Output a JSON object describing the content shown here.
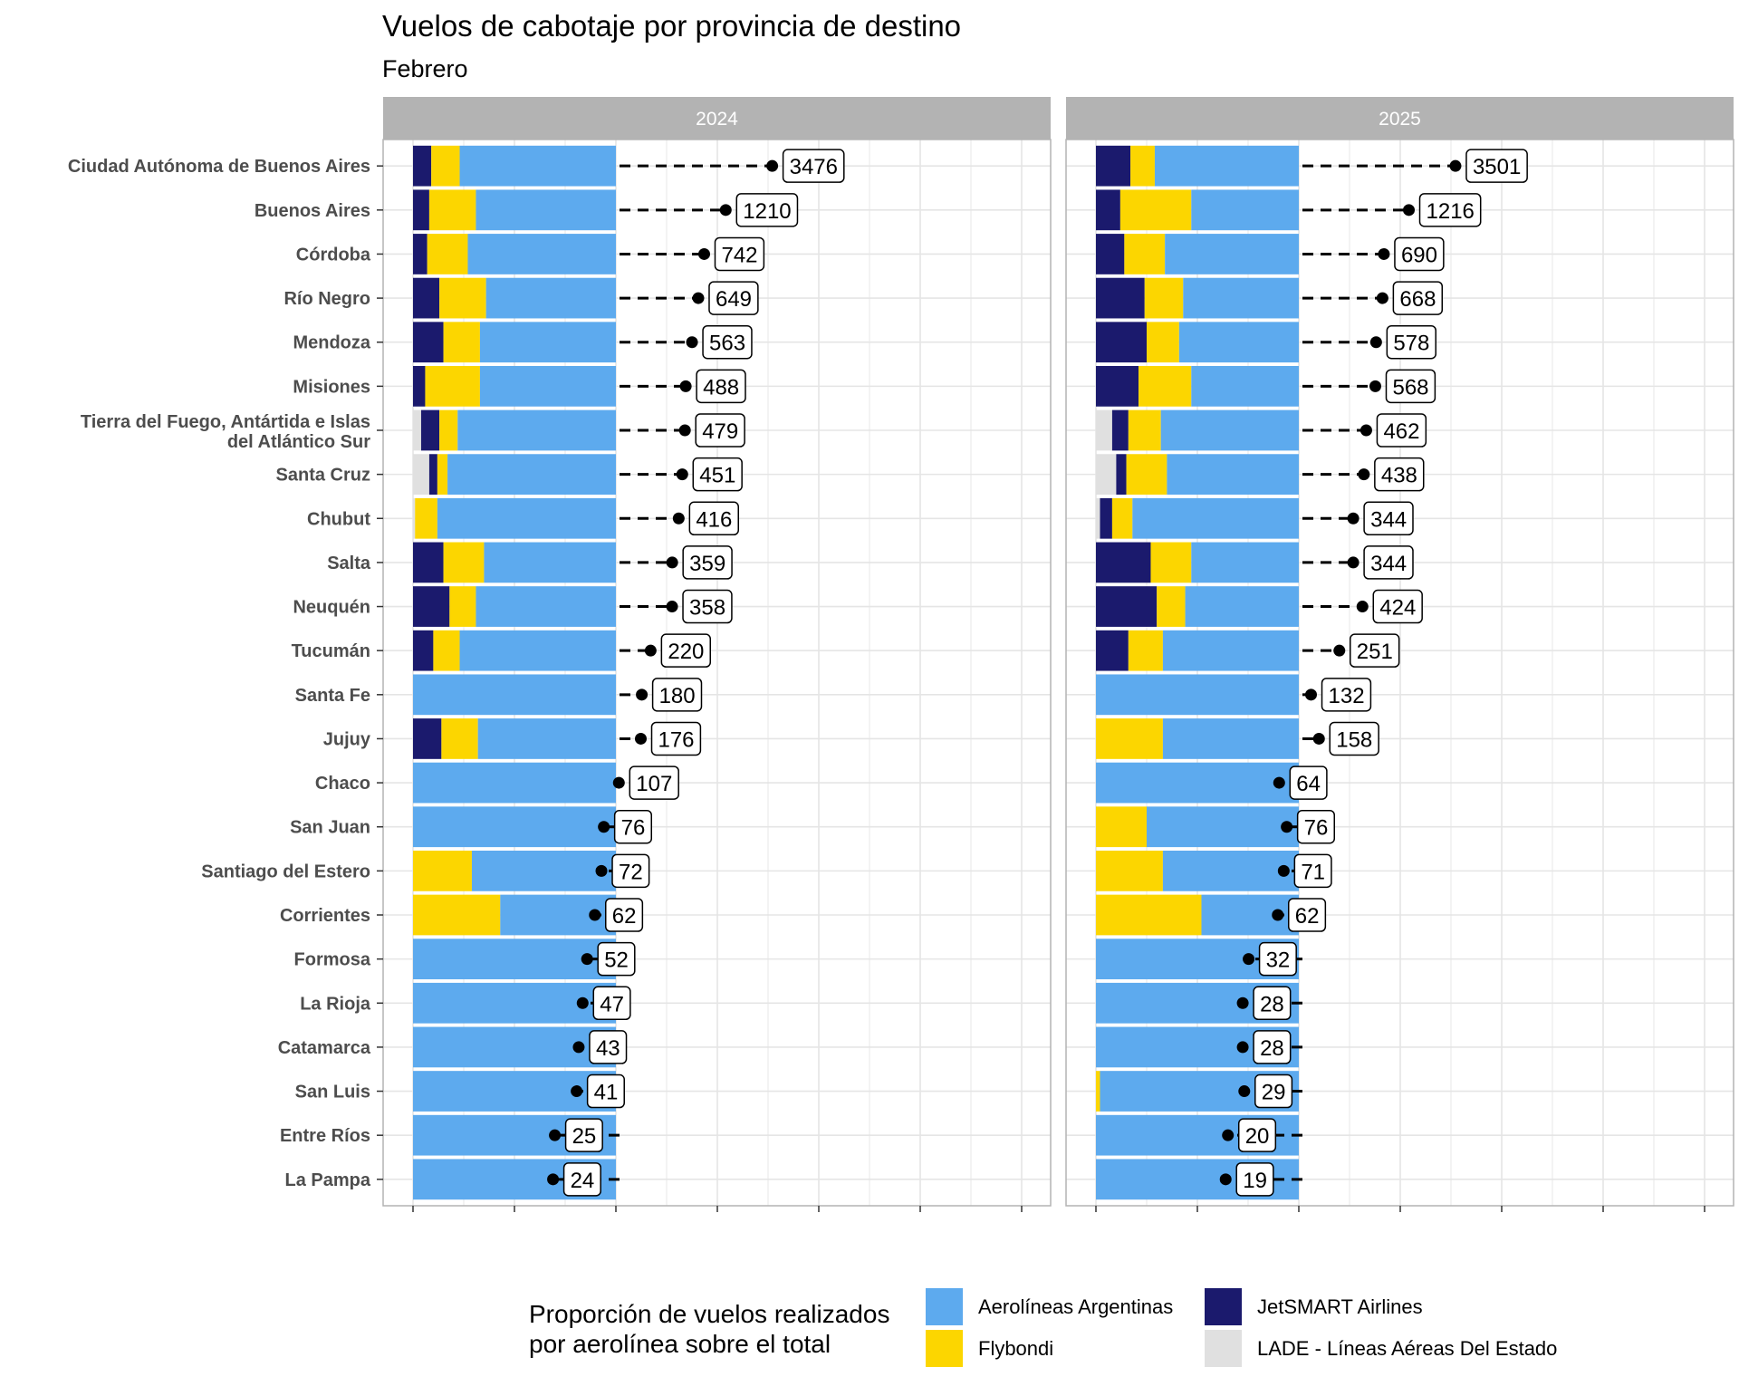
{
  "chart_data": {
    "type": "bar",
    "title": "Vuelos de cabotaje por provincia de destino",
    "subtitle": "Febrero",
    "panels": [
      "2024",
      "2025"
    ],
    "categories": [
      "Ciudad Autónoma de Buenos Aires",
      "Buenos Aires",
      "Córdoba",
      "Río Negro",
      "Mendoza",
      "Misiones",
      "Tierra del Fuego, Antártida e Islas del Atlántico Sur",
      "Santa Cruz",
      "Chubut",
      "Salta",
      "Neuquén",
      "Tucumán",
      "Santa Fe",
      "Jujuy",
      "Chaco",
      "San Juan",
      "Santiago del Estero",
      "Corrientes",
      "Formosa",
      "La Rioja",
      "Catamarca",
      "San Luis",
      "Entre Ríos",
      "La Pampa"
    ],
    "airlines": [
      {
        "key": "lade",
        "name": "LADE - Líneas Aéreas Del Estado",
        "color": "#e0e0e0"
      },
      {
        "key": "jetsmart",
        "name": "JetSMART Airlines",
        "color": "#1b1a6d"
      },
      {
        "key": "flybondi",
        "name": "Flybondi",
        "color": "#fcd600"
      },
      {
        "key": "aerolineas",
        "name": "Aerolíneas Argentinas",
        "color": "#5daaee"
      }
    ],
    "totals": {
      "2024": [
        3476,
        1210,
        742,
        649,
        563,
        488,
        479,
        451,
        416,
        359,
        358,
        220,
        180,
        176,
        107,
        76,
        72,
        62,
        52,
        47,
        43,
        41,
        25,
        24
      ],
      "2025": [
        3501,
        1216,
        690,
        668,
        578,
        568,
        462,
        438,
        344,
        344,
        424,
        251,
        132,
        158,
        64,
        76,
        71,
        62,
        32,
        28,
        28,
        29,
        20,
        19
      ]
    },
    "shares": {
      "2024": {
        "lade": [
          0,
          0,
          0,
          0,
          0,
          0,
          0.04,
          0.08,
          0.01,
          0,
          0,
          0,
          0,
          0,
          0,
          0,
          0,
          0,
          0,
          0,
          0,
          0,
          0,
          0
        ],
        "jetsmart": [
          0.09,
          0.08,
          0.07,
          0.13,
          0.15,
          0.06,
          0.09,
          0.04,
          0,
          0.15,
          0.18,
          0.1,
          0,
          0.14,
          0,
          0,
          0,
          0,
          0,
          0,
          0,
          0,
          0,
          0
        ],
        "flybondi": [
          0.14,
          0.23,
          0.2,
          0.23,
          0.18,
          0.27,
          0.09,
          0.05,
          0.11,
          0.2,
          0.13,
          0.13,
          0,
          0.18,
          0,
          0,
          0.29,
          0.43,
          0,
          0,
          0,
          0,
          0,
          0
        ],
        "aerolineas": [
          0.77,
          0.69,
          0.73,
          0.64,
          0.67,
          0.67,
          0.78,
          0.83,
          0.88,
          0.65,
          0.69,
          0.77,
          1.0,
          0.68,
          1.0,
          1.0,
          0.71,
          0.57,
          1.0,
          1.0,
          1.0,
          1.0,
          1.0,
          1.0
        ]
      },
      "2025": {
        "lade": [
          0,
          0,
          0,
          0,
          0,
          0,
          0.08,
          0.1,
          0.02,
          0,
          0,
          0,
          0,
          0,
          0,
          0,
          0,
          0,
          0,
          0,
          0,
          0,
          0,
          0
        ],
        "jetsmart": [
          0.17,
          0.12,
          0.14,
          0.24,
          0.25,
          0.21,
          0.08,
          0.05,
          0.06,
          0.27,
          0.3,
          0.16,
          0,
          0,
          0,
          0,
          0,
          0,
          0,
          0,
          0,
          0,
          0,
          0
        ],
        "flybondi": [
          0.12,
          0.35,
          0.2,
          0.19,
          0.16,
          0.26,
          0.16,
          0.2,
          0.1,
          0.2,
          0.14,
          0.17,
          0,
          0.33,
          0,
          0.25,
          0.33,
          0.52,
          0,
          0,
          0,
          0.02,
          0,
          0
        ],
        "aerolineas": [
          0.71,
          0.53,
          0.66,
          0.57,
          0.59,
          0.53,
          0.68,
          0.65,
          0.82,
          0.53,
          0.56,
          0.67,
          1.0,
          0.67,
          1.0,
          0.75,
          0.67,
          0.48,
          1.0,
          1.0,
          1.0,
          0.98,
          1.0,
          1.0
        ]
      }
    },
    "legend": {
      "title_line1": "Proporción de vuelos realizados",
      "title_line2": "por aerolínea sobre el total",
      "placement": "bottom",
      "order": [
        "aerolineas",
        "jetsmart",
        "flybondi",
        "lade"
      ]
    },
    "xlabel": "",
    "ylabel": "",
    "x_scale": "log",
    "xlim": [
      1,
      1000000
    ],
    "grid": true
  }
}
